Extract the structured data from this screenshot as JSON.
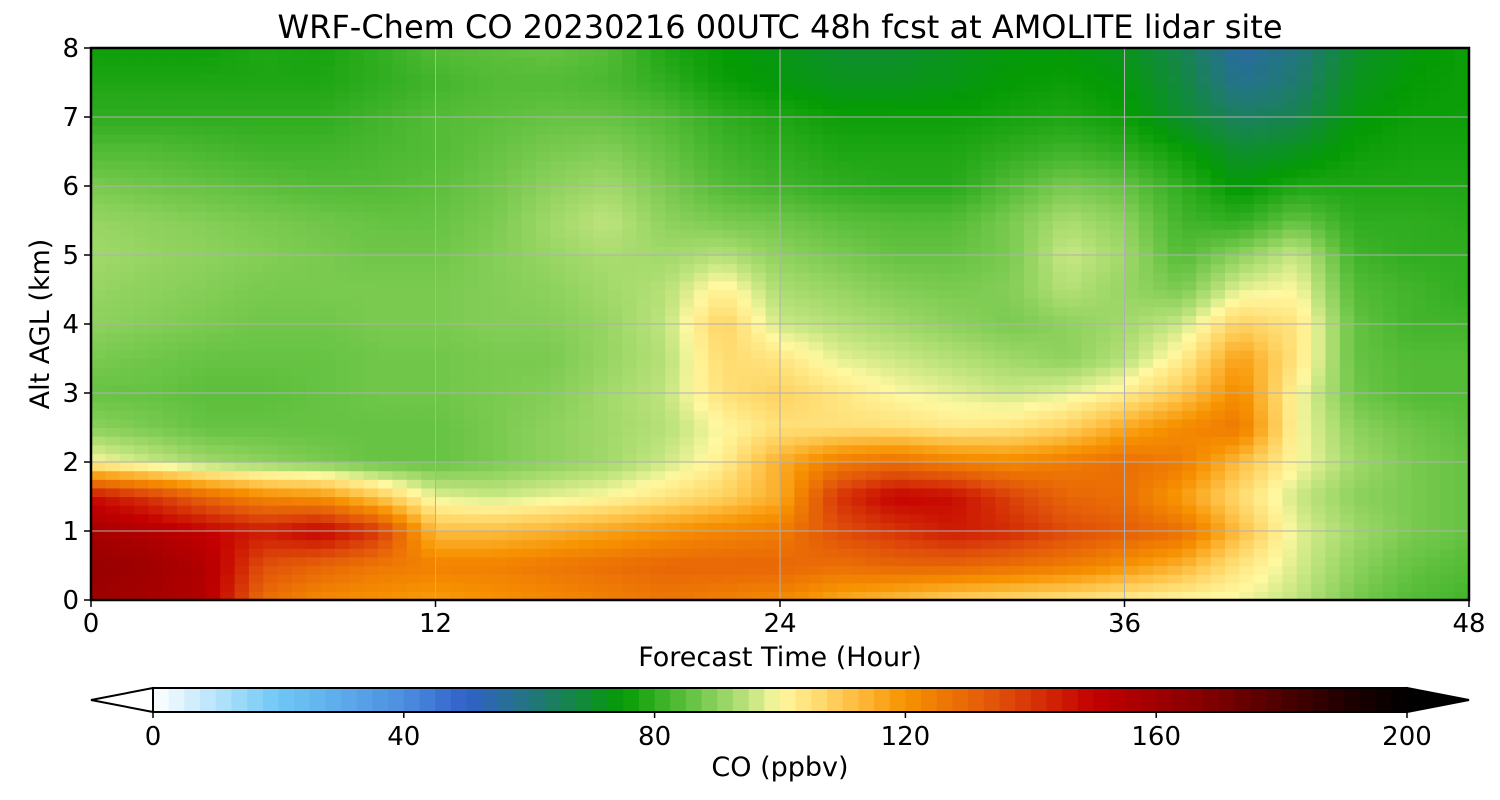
{
  "chart_data": {
    "type": "heatmap",
    "title": "WRF-Chem CO  20230216 00UTC 48h fcst at AMOLITE lidar site",
    "xlabel": "Forecast Time (Hour)",
    "ylabel": "Alt AGL (km)",
    "xlim": [
      0,
      48
    ],
    "ylim": [
      0,
      8
    ],
    "xticks": [
      0,
      12,
      24,
      36,
      48
    ],
    "yticks": [
      0,
      1,
      2,
      3,
      4,
      5,
      6,
      7,
      8
    ],
    "grid": true,
    "x": [
      0,
      2,
      4,
      6,
      8,
      10,
      12,
      14,
      16,
      18,
      20,
      22,
      24,
      26,
      28,
      30,
      32,
      34,
      36,
      38,
      40,
      42,
      44,
      46,
      48
    ],
    "y": [
      0,
      0.5,
      1,
      1.5,
      2,
      2.5,
      3,
      3.5,
      4,
      4.5,
      5,
      5.5,
      6,
      6.5,
      7,
      7.5,
      8
    ],
    "z": [
      [
        160,
        158,
        155,
        128,
        122,
        120,
        118,
        120,
        122,
        124,
        126,
        124,
        122,
        116,
        112,
        108,
        106,
        104,
        102,
        100,
        99,
        95,
        88,
        84,
        82
      ],
      [
        162,
        160,
        155,
        135,
        130,
        126,
        124,
        124,
        126,
        128,
        130,
        130,
        130,
        128,
        130,
        130,
        128,
        125,
        120,
        114,
        104,
        97,
        90,
        86,
        84
      ],
      [
        158,
        155,
        150,
        145,
        150,
        140,
        112,
        112,
        114,
        117,
        120,
        123,
        125,
        135,
        140,
        145,
        142,
        136,
        132,
        128,
        112,
        98,
        92,
        88,
        86
      ],
      [
        148,
        140,
        130,
        122,
        120,
        110,
        98,
        96,
        98,
        100,
        104,
        108,
        115,
        140,
        150,
        148,
        138,
        130,
        128,
        118,
        106,
        96,
        90,
        88,
        86
      ],
      [
        100,
        96,
        92,
        90,
        88,
        86,
        86,
        88,
        90,
        92,
        96,
        102,
        115,
        125,
        128,
        124,
        122,
        125,
        128,
        125,
        112,
        100,
        92,
        88,
        86
      ],
      [
        90,
        88,
        86,
        86,
        86,
        86,
        86,
        88,
        90,
        92,
        94,
        100,
        105,
        105,
        105,
        103,
        104,
        108,
        116,
        122,
        126,
        100,
        90,
        87,
        85
      ],
      [
        86,
        86,
        85,
        85,
        86,
        87,
        87,
        88,
        89,
        92,
        95,
        105,
        108,
        104,
        100,
        98,
        96,
        98,
        102,
        110,
        122,
        100,
        87,
        84,
        84
      ],
      [
        88,
        87,
        86,
        86,
        86,
        87,
        87,
        88,
        88,
        91,
        94,
        106,
        104,
        98,
        96,
        94,
        92,
        90,
        94,
        102,
        118,
        104,
        86,
        84,
        84
      ],
      [
        90,
        89,
        88,
        87,
        87,
        88,
        88,
        89,
        89,
        91,
        95,
        108,
        96,
        94,
        92,
        90,
        88,
        90,
        92,
        96,
        108,
        104,
        86,
        82,
        82
      ],
      [
        91,
        90,
        89,
        88,
        88,
        88,
        88,
        89,
        90,
        92,
        94,
        102,
        93,
        91,
        89,
        88,
        89,
        94,
        91,
        88,
        98,
        100,
        84,
        82,
        80
      ],
      [
        92,
        91,
        90,
        89,
        88,
        87,
        87,
        89,
        91,
        93,
        92,
        94,
        90,
        88,
        86,
        86,
        88,
        96,
        92,
        84,
        90,
        96,
        82,
        80,
        80
      ],
      [
        91,
        90,
        89,
        88,
        87,
        86,
        86,
        88,
        92,
        95,
        90,
        88,
        87,
        85,
        84,
        84,
        88,
        93,
        90,
        82,
        80,
        86,
        80,
        80,
        79
      ],
      [
        88,
        87,
        86,
        85,
        84,
        84,
        85,
        87,
        90,
        92,
        88,
        84,
        82,
        80,
        79,
        79,
        84,
        88,
        86,
        80,
        74,
        78,
        78,
        78,
        78
      ],
      [
        84,
        84,
        83,
        82,
        82,
        83,
        84,
        86,
        88,
        89,
        86,
        82,
        80,
        78,
        78,
        78,
        80,
        82,
        80,
        76,
        70,
        72,
        76,
        77,
        77
      ],
      [
        80,
        80,
        80,
        80,
        80,
        82,
        84,
        85,
        86,
        86,
        84,
        80,
        78,
        76,
        76,
        76,
        77,
        78,
        76,
        70,
        64,
        66,
        74,
        76,
        76
      ],
      [
        78,
        78,
        78,
        78,
        78,
        80,
        82,
        84,
        84,
        83,
        80,
        76,
        74,
        72,
        72,
        73,
        75,
        76,
        74,
        68,
        58,
        62,
        72,
        75,
        76
      ],
      [
        76,
        76,
        76,
        78,
        77,
        80,
        84,
        85,
        86,
        84,
        78,
        75,
        73,
        70,
        70,
        72,
        74,
        74,
        72,
        66,
        55,
        60,
        70,
        74,
        76
      ]
    ],
    "colorbar": {
      "label": "CO  (ppbv)",
      "min": 0,
      "max": 200,
      "ticks": [
        0,
        40,
        80,
        120,
        160,
        200
      ],
      "extend": "both",
      "stops": [
        {
          "v": 0,
          "c": "#ffffff"
        },
        {
          "v": 20,
          "c": "#6ec8f5"
        },
        {
          "v": 40,
          "c": "#4c8ee0"
        },
        {
          "v": 50,
          "c": "#3060c8"
        },
        {
          "v": 62,
          "c": "#1f7a70"
        },
        {
          "v": 75,
          "c": "#049b04"
        },
        {
          "v": 85,
          "c": "#5cbf3c"
        },
        {
          "v": 95,
          "c": "#bfe47e"
        },
        {
          "v": 100,
          "c": "#fff8a0"
        },
        {
          "v": 110,
          "c": "#ffc850"
        },
        {
          "v": 120,
          "c": "#f79200"
        },
        {
          "v": 135,
          "c": "#e0500a"
        },
        {
          "v": 150,
          "c": "#c40000"
        },
        {
          "v": 170,
          "c": "#7a0000"
        },
        {
          "v": 190,
          "c": "#200000"
        },
        {
          "v": 200,
          "c": "#000000"
        }
      ]
    }
  }
}
